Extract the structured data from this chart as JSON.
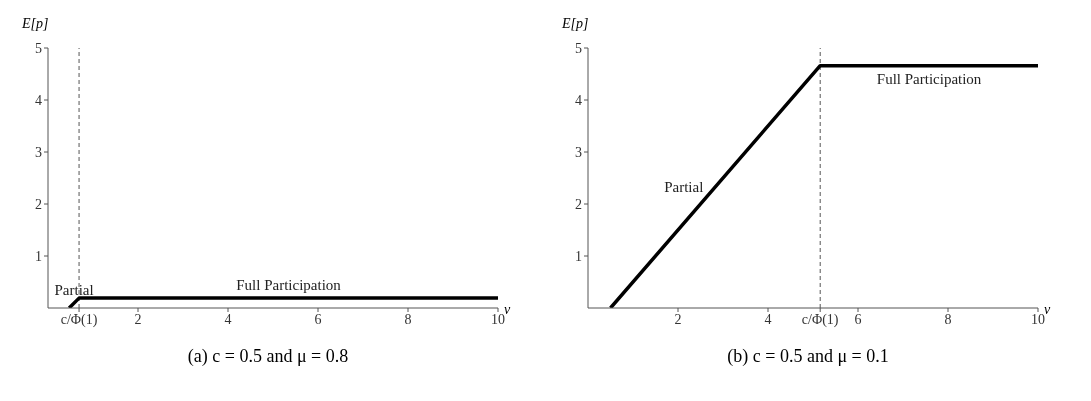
{
  "chart_data": [
    {
      "type": "line",
      "title": "(a) c = 0.5 and μ = 0.8",
      "xlabel": "v",
      "ylabel": "E[p]",
      "xlim": [
        0,
        10
      ],
      "ylim": [
        0,
        5
      ],
      "xticks": [
        {
          "value": 0.69,
          "label": "c/Φ(1)"
        },
        2,
        4,
        6,
        8,
        10
      ],
      "yticks": [
        1,
        2,
        3,
        4,
        5
      ],
      "marker": "none",
      "line_style": "solid",
      "series": [
        {
          "color": "#000000",
          "x": [
            0.47,
            0.69,
            10
          ],
          "values": [
            0,
            0.19,
            0.19
          ]
        }
      ],
      "ref_lines": [
        {
          "axis": "x",
          "value": 0.69,
          "line_style": "dashed",
          "color": "#555555"
        }
      ],
      "annotations": [
        "Partial",
        "Full Participation"
      ]
    },
    {
      "type": "line",
      "title": "(b) c = 0.5 and μ = 0.1",
      "xlabel": "v",
      "ylabel": "E[p]",
      "xlim": [
        0,
        10
      ],
      "ylim": [
        0,
        5
      ],
      "xticks": [
        2,
        4,
        {
          "value": 5.16,
          "label": "c/Φ(1)"
        },
        6,
        8,
        10
      ],
      "yticks": [
        1,
        2,
        3,
        4,
        5
      ],
      "marker": "none",
      "line_style": "solid",
      "series": [
        {
          "color": "#000000",
          "x": [
            0.5,
            5.16,
            10
          ],
          "values": [
            0,
            4.66,
            4.66
          ]
        }
      ],
      "ref_lines": [
        {
          "axis": "x",
          "value": 5.16,
          "line_style": "dashed",
          "color": "#555555"
        }
      ],
      "annotations": [
        "Partial",
        "Full Participation"
      ]
    }
  ]
}
